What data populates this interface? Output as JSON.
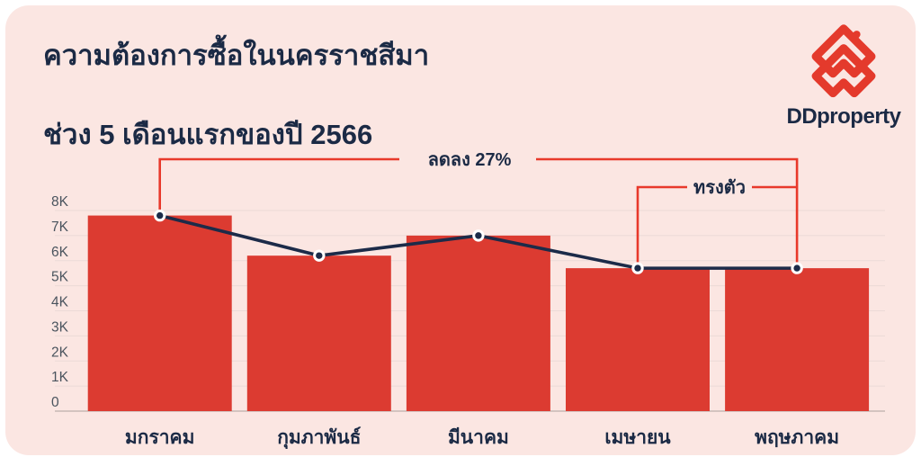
{
  "header": {
    "title_line1": "ความต้องการซื้อในนครราชสีมา",
    "title_line2": "ช่วง 5 เดือนแรกของปี 2566"
  },
  "logo": {
    "brand": "DDproperty"
  },
  "chart_data": {
    "type": "bar",
    "title": "ความต้องการซื้อในนครราชสีมา ช่วง 5 เดือนแรกของปี 2566",
    "categories": [
      "มกราคม",
      "กุมภาพันธ์",
      "มีนาคม",
      "เมษายน",
      "พฤษภาคม"
    ],
    "values": [
      7800,
      6200,
      7000,
      5700,
      5700
    ],
    "line_overlay": {
      "type": "line",
      "values": [
        7800,
        6200,
        7000,
        5700,
        5700
      ]
    },
    "xlabel": "",
    "ylabel": "",
    "ylim": [
      0,
      8000
    ],
    "yticks": [
      "0",
      "1K",
      "2K",
      "3K",
      "4K",
      "5K",
      "6K",
      "7K",
      "8K"
    ],
    "grid": true,
    "legend": false,
    "annotations": [
      {
        "label": "ลดลง 27%",
        "connects": [
          "มกราคม",
          "พฤษภาคม"
        ]
      },
      {
        "label": "ทรงตัว",
        "connects": [
          "เมษายน",
          "พฤษภาคม"
        ]
      }
    ],
    "colors": {
      "bar": "#DC3B31",
      "accent_line": "#E8392B",
      "trend_line": "#1C2B49",
      "text": "#1B2A45",
      "tick_text": "#4A545E",
      "gridline": "#EBDAD7",
      "zero_line": "#C8B9B5",
      "card_bg": "#FBE6E2"
    }
  }
}
